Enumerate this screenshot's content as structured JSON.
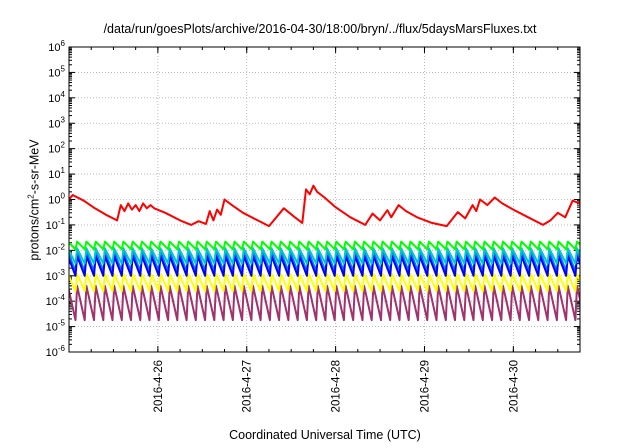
{
  "chart_data": {
    "type": "line",
    "title": "/data/run/goesPlots/archive/2016-04-30/18:00/bryn/../flux/5daysMarsFluxes.txt",
    "xlabel": "Coordinated Universal Time (UTC)",
    "ylabel": {
      "pre": "protons/cm",
      "sup": "2",
      "post": "-s-sr-MeV"
    },
    "yscale": "log",
    "ylim": [
      1e-06,
      1000000.0
    ],
    "ytick_exponents": [
      -6,
      -5,
      -4,
      -3,
      -2,
      -1,
      0,
      1,
      2,
      3,
      4,
      5,
      6
    ],
    "xlim": [
      "2016-04-25 00:00",
      "2016-04-30 18:00"
    ],
    "xticks": [
      "2016-4-26",
      "2016-4-27",
      "2016-4-28",
      "2016-4-29",
      "2016-4-30"
    ],
    "grid": true,
    "colors": {
      "red": "#ff0000",
      "green": "#00ff00",
      "cyan": "#00c8c8",
      "blue": "#0000ff",
      "azure": "#0080ff",
      "yellow": "#ffff00",
      "purple": "#a0326e"
    },
    "series": [
      {
        "color": "#ff0000",
        "x": [
          "2016-04-25 00:00",
          "2016-04-25 01:00",
          "2016-04-25 04:00",
          "2016-04-25 07:00",
          "2016-04-25 10:00",
          "2016-04-25 13:00",
          "2016-04-25 14:00",
          "2016-04-25 15:00",
          "2016-04-25 16:00",
          "2016-04-25 17:00",
          "2016-04-25 18:00",
          "2016-04-25 19:00",
          "2016-04-25 20:00",
          "2016-04-25 21:00",
          "2016-04-25 22:00",
          "2016-04-25 23:00",
          "2016-04-26 02:00",
          "2016-04-26 06:00",
          "2016-04-26 09:00",
          "2016-04-26 11:00",
          "2016-04-26 13:00",
          "2016-04-26 14:00",
          "2016-04-26 15:00",
          "2016-04-26 16:00",
          "2016-04-26 17:00",
          "2016-04-26 18:00",
          "2016-04-26 20:00",
          "2016-04-26 23:00",
          "2016-04-27 03:00",
          "2016-04-27 06:00",
          "2016-04-27 10:00",
          "2016-04-27 13:00",
          "2016-04-27 15:00",
          "2016-04-27 16:00",
          "2016-04-27 17:00",
          "2016-04-27 18:00",
          "2016-04-27 19:00",
          "2016-04-27 21:00",
          "2016-04-28 00:00",
          "2016-04-28 04:00",
          "2016-04-28 08:00",
          "2016-04-28 10:00",
          "2016-04-28 12:00",
          "2016-04-28 14:00",
          "2016-04-28 15:00",
          "2016-04-28 17:00",
          "2016-04-28 19:00",
          "2016-04-28 22:00",
          "2016-04-29 02:00",
          "2016-04-29 06:00",
          "2016-04-29 09:00",
          "2016-04-29 11:00",
          "2016-04-29 13:00",
          "2016-04-29 14:00",
          "2016-04-29 15:00",
          "2016-04-29 17:00",
          "2016-04-29 19:00",
          "2016-04-29 21:00",
          "2016-04-30 00:00",
          "2016-04-30 04:00",
          "2016-04-30 08:00",
          "2016-04-30 10:00",
          "2016-04-30 12:00",
          "2016-04-30 14:00",
          "2016-04-30 16:00",
          "2016-04-30 18:00"
        ],
        "y": [
          1.0,
          1.5,
          0.9,
          0.45,
          0.25,
          0.15,
          0.6,
          0.35,
          0.7,
          0.4,
          0.6,
          0.35,
          0.7,
          0.45,
          0.6,
          0.45,
          0.3,
          0.15,
          0.1,
          0.14,
          0.11,
          0.35,
          0.15,
          0.4,
          0.25,
          1.0,
          0.6,
          0.3,
          0.15,
          0.09,
          0.45,
          0.2,
          0.12,
          2.5,
          1.6,
          3.5,
          2.0,
          1.2,
          0.5,
          0.2,
          0.1,
          0.28,
          0.15,
          0.38,
          0.2,
          0.6,
          0.35,
          0.2,
          0.12,
          0.09,
          0.32,
          0.18,
          0.6,
          0.35,
          1.0,
          0.6,
          1.2,
          0.7,
          0.4,
          0.2,
          0.1,
          0.15,
          0.3,
          0.2,
          0.9,
          0.7
        ]
      },
      {
        "color": "#00ff00",
        "pattern": "sawtooth",
        "period_hours": 2.5,
        "peak": 0.022,
        "base": 0.011
      },
      {
        "color": "#00c8c8",
        "pattern": "sawtooth",
        "period_hours": 2.5,
        "peak": 0.012,
        "base": 0.003
      },
      {
        "color": "#0000ff",
        "pattern": "sawtooth",
        "period_hours": 2.5,
        "peak": 0.006,
        "base": 0.001
      },
      {
        "color": "#0080ff",
        "pattern": "sawtooth",
        "period_hours": 2.5,
        "peak": 0.009,
        "base": 0.0015
      },
      {
        "color": "#ffff00",
        "pattern": "sawtooth",
        "period_hours": 2.5,
        "peak": 0.0012,
        "base": 0.00025
      },
      {
        "color": "#a0326e",
        "pattern": "sawtooth",
        "period_hours": 2.5,
        "peak": 0.0004,
        "base": 1.8e-05
      }
    ]
  }
}
